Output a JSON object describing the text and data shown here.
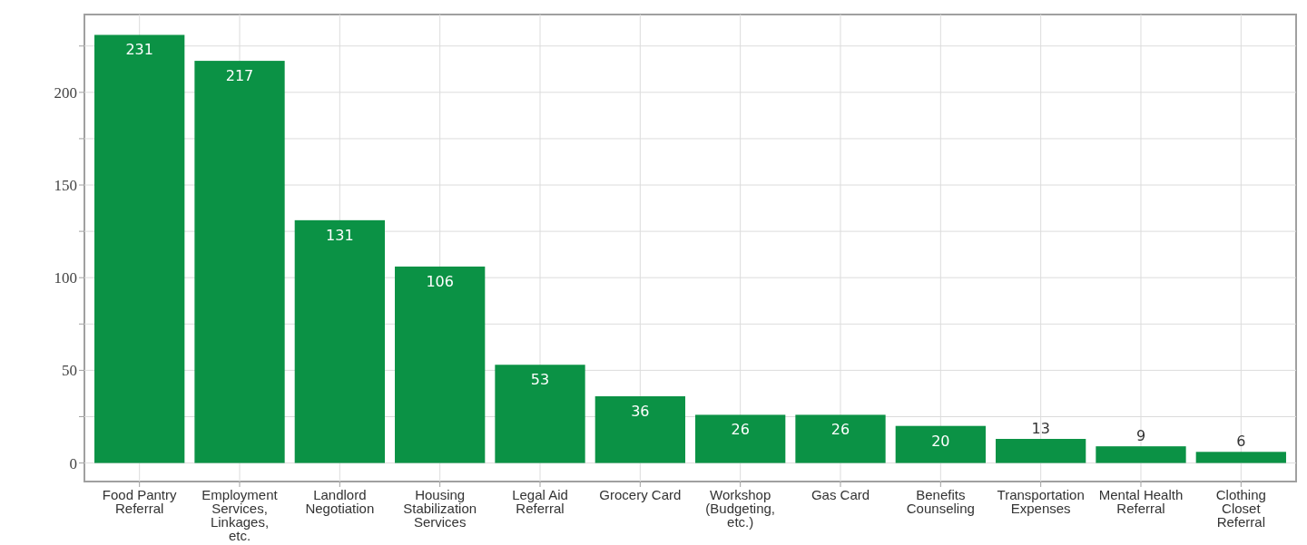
{
  "chart_data": {
    "type": "bar",
    "categories": [
      "Food Pantry Referral",
      "Employment Services, Linkages, etc.",
      "Landlord Negotiation",
      "Housing Stabilization Services",
      "Legal Aid Referral",
      "Grocery Card",
      "Workshop (Budgeting, etc.)",
      "Gas Card",
      "Benefits Counseling",
      "Transportation Expenses",
      "Mental Health Referral",
      "Clothing Closet Referral"
    ],
    "values": [
      231,
      217,
      131,
      106,
      53,
      36,
      26,
      26,
      20,
      13,
      9,
      6
    ],
    "color": "#0b9245",
    "ylim": [
      -10,
      242
    ],
    "yticks": [
      0,
      {
        "value": 25,
        "label": null
      },
      50,
      {
        "value": 75,
        "label": null
      },
      100,
      {
        "value": 125,
        "label": null
      },
      150,
      {
        "value": 175,
        "label": null
      },
      200,
      {
        "value": 225,
        "label": null
      }
    ],
    "grid": true,
    "data_labels": true
  }
}
